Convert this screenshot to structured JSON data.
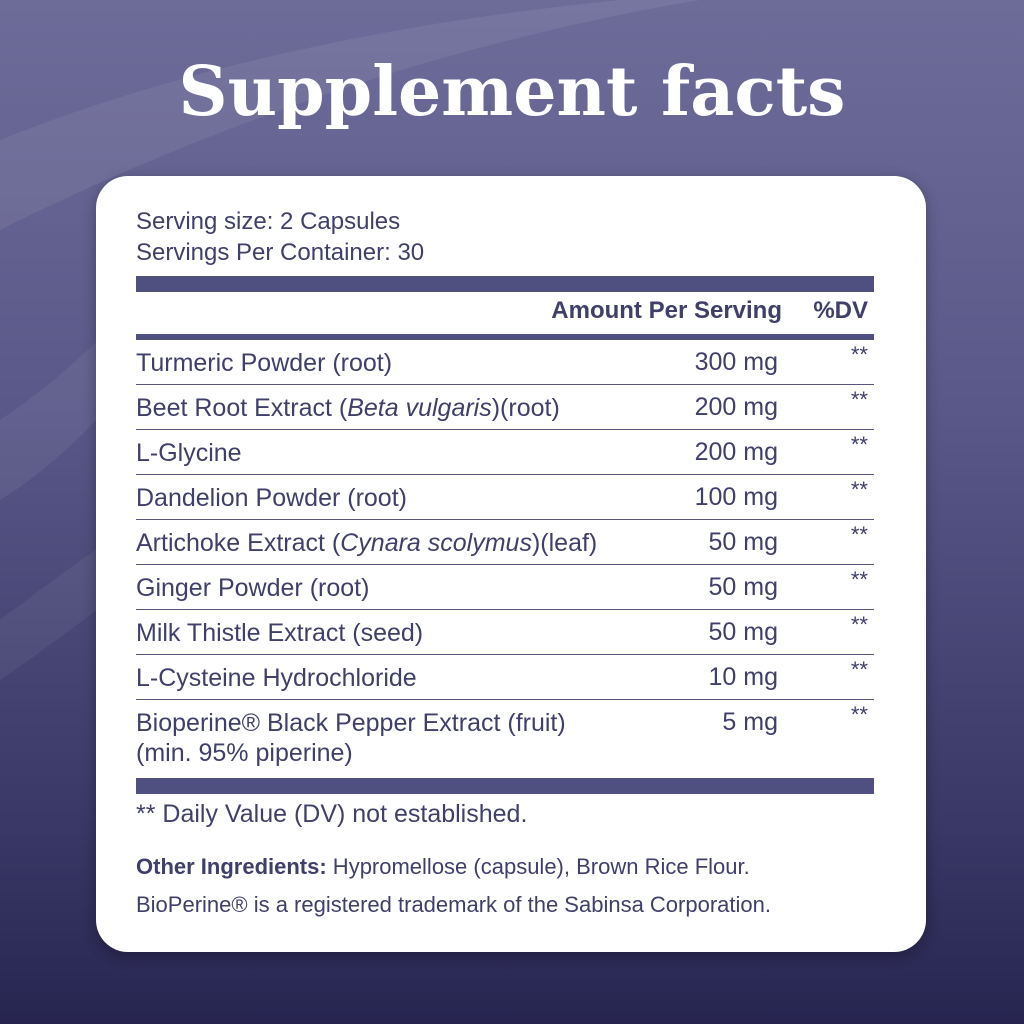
{
  "title": "Supplement facts",
  "serving_size": "Serving size: 2 Capsules",
  "servings_per_container": "Servings Per Container: 30",
  "header": {
    "amount": "Amount Per Serving",
    "dv": "%DV"
  },
  "rows": [
    {
      "name": "Turmeric Powder (root)",
      "amount": "300 mg",
      "dv": "**"
    },
    {
      "name_pre": "Beet Root Extract (",
      "name_italic": "Beta vulgaris",
      "name_post": ")(root)",
      "amount": "200 mg",
      "dv": "**"
    },
    {
      "name": "L-Glycine",
      "amount": "200 mg",
      "dv": "**"
    },
    {
      "name": "Dandelion Powder (root)",
      "amount": "100 mg",
      "dv": "**"
    },
    {
      "name_pre": "Artichoke Extract (",
      "name_italic": "Cynara scolymus",
      "name_post": ")(leaf)",
      "amount": "50 mg",
      "dv": "**"
    },
    {
      "name": "Ginger Powder (root)",
      "amount": "50 mg",
      "dv": "**"
    },
    {
      "name": "Milk Thistle Extract (seed)",
      "amount": "50 mg",
      "dv": "**"
    },
    {
      "name": "L-Cysteine Hydrochloride",
      "amount": "10 mg",
      "dv": "**"
    },
    {
      "name": "Bioperine® Black Pepper Extract (fruit)",
      "name_line2": "(min. 95% piperine)",
      "amount": "5 mg",
      "dv": "**"
    }
  ],
  "footnote": "** Daily Value (DV) not established.",
  "other_label": "Other Ingredients:",
  "other_text": " Hypromellose (capsule), Brown Rice Flour.",
  "trademark": "BioPerine® is a registered trademark of the Sabinsa Corporation.",
  "colors": {
    "accent": "#4f5080",
    "text": "#3f3f6a"
  }
}
